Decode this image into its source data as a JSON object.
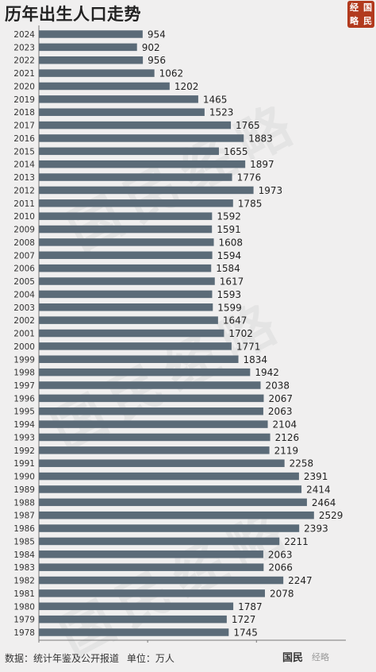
{
  "title": "历年出生人口走势",
  "logo": {
    "chars": [
      "经",
      "国",
      "略",
      "民"
    ]
  },
  "watermark": "国民经略",
  "source_label": "数据：统计年鉴及公开报道",
  "unit_label": "单位：万人",
  "brand": "国民",
  "brand_faded": "经略",
  "chart_data": {
    "type": "bar",
    "orientation": "horizontal",
    "title": "历年出生人口走势",
    "unit": "万人",
    "categories": [
      "2024",
      "2023",
      "2022",
      "2021",
      "2020",
      "2019",
      "2018",
      "2017",
      "2016",
      "2015",
      "2014",
      "2013",
      "2012",
      "2011",
      "2010",
      "2009",
      "2008",
      "2007",
      "2006",
      "2005",
      "2004",
      "2003",
      "2002",
      "2001",
      "2000",
      "1999",
      "1998",
      "1997",
      "1996",
      "1995",
      "1994",
      "1993",
      "1992",
      "1991",
      "1990",
      "1989",
      "1988",
      "1987",
      "1986",
      "1985",
      "1984",
      "1983",
      "1982",
      "1981",
      "1980",
      "1979",
      "1978"
    ],
    "values": [
      954,
      902,
      956,
      1062,
      1202,
      1465,
      1523,
      1765,
      1883,
      1655,
      1897,
      1776,
      1973,
      1785,
      1592,
      1591,
      1608,
      1594,
      1584,
      1617,
      1593,
      1599,
      1647,
      1702,
      1771,
      1834,
      1942,
      2038,
      2067,
      2063,
      2104,
      2126,
      2119,
      2258,
      2391,
      2414,
      2464,
      2529,
      2393,
      2211,
      2063,
      2066,
      2247,
      2078,
      1787,
      1727,
      1745
    ],
    "xlim": [
      0,
      2800
    ],
    "bar_color": "#5b6b78",
    "grid": false
  }
}
